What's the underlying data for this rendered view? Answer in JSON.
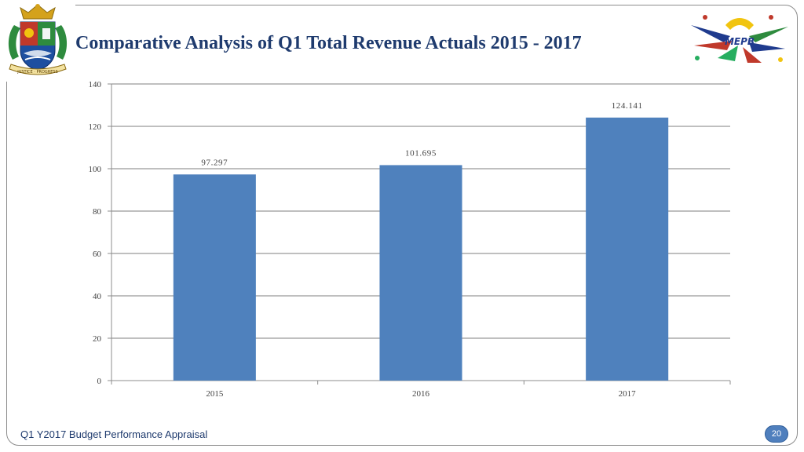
{
  "header": {
    "title": "Comparative Analysis of Q1 Total Revenue Actuals 2015 - 2017",
    "crest_motto": "JUSTICE · PROGRESS",
    "logo_text": "MEPB"
  },
  "footer": {
    "text": "Q1 Y2017 Budget Performance Appraisal",
    "page_number": "20"
  },
  "colors": {
    "bar": "#4f81bd",
    "title": "#1f3b6e",
    "grid": "#7f7f7f"
  },
  "chart_data": {
    "type": "bar",
    "title": "Comparative Analysis of Q1 Total Revenue Actuals 2015 - 2017",
    "categories": [
      "2015",
      "2016",
      "2017"
    ],
    "values": [
      97.297,
      101.695,
      124.141
    ],
    "data_labels": [
      "97.297",
      "101.695",
      "124.141"
    ],
    "ylim": [
      0,
      140
    ],
    "yticks": [
      0,
      20,
      40,
      60,
      80,
      100,
      120,
      140
    ],
    "xlabel": "",
    "ylabel": "",
    "grid": true,
    "legend": "none"
  }
}
